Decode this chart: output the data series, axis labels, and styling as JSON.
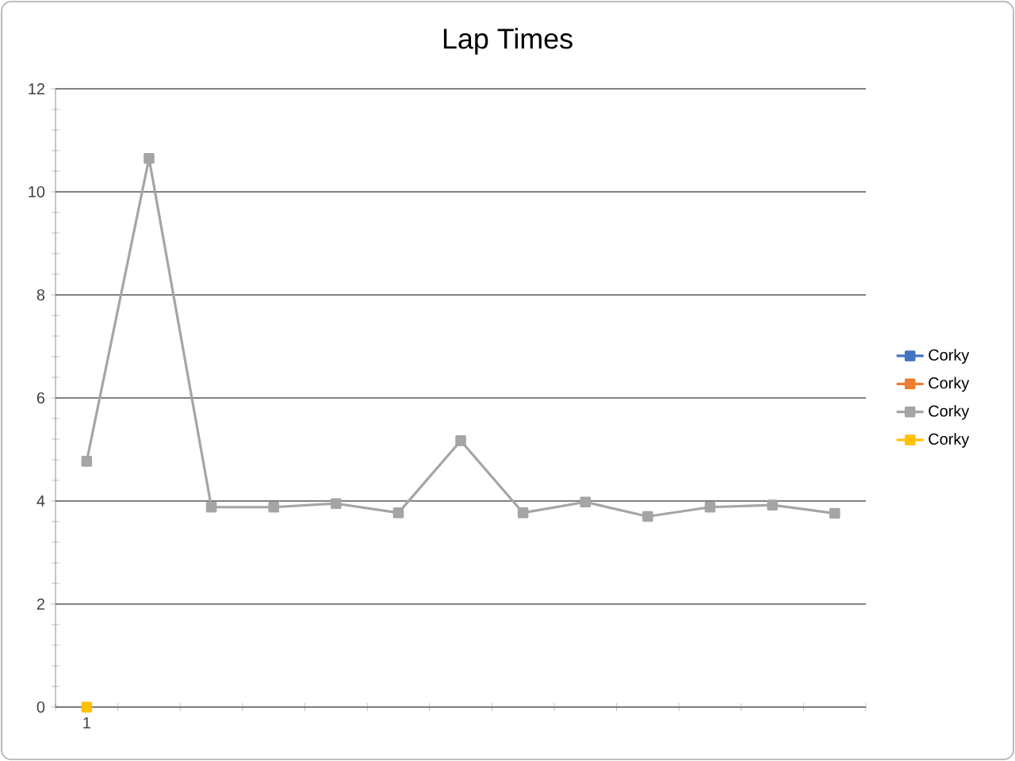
{
  "chart_data": {
    "type": "line",
    "title": "Lap Times",
    "categories": [
      "1",
      null,
      null,
      null,
      null,
      null,
      null,
      null,
      null,
      null,
      null,
      null,
      null
    ],
    "series": [
      {
        "name": "Corky",
        "color": "#4472c4",
        "values": [
          null,
          null,
          null,
          null,
          null,
          null,
          null,
          null,
          null,
          null,
          null,
          null,
          null
        ]
      },
      {
        "name": "Corky",
        "color": "#ed7d31",
        "values": [
          null,
          null,
          null,
          null,
          null,
          null,
          null,
          null,
          null,
          null,
          null,
          null,
          null
        ]
      },
      {
        "name": "Corky",
        "color": "#a5a5a5",
        "values": [
          4.77,
          10.65,
          3.88,
          3.88,
          3.95,
          3.77,
          5.17,
          3.77,
          3.98,
          3.7,
          3.88,
          3.92,
          3.76
        ]
      },
      {
        "name": "Corky",
        "color": "#ffc000",
        "values": [
          0,
          null,
          null,
          null,
          null,
          null,
          null,
          null,
          null,
          null,
          null,
          null,
          null
        ]
      }
    ],
    "ylim": [
      0,
      12
    ],
    "yticks": [
      0,
      2,
      4,
      6,
      8,
      10,
      12
    ],
    "grid": "y",
    "legend": "right",
    "marker": "square",
    "line_style": "solid"
  }
}
